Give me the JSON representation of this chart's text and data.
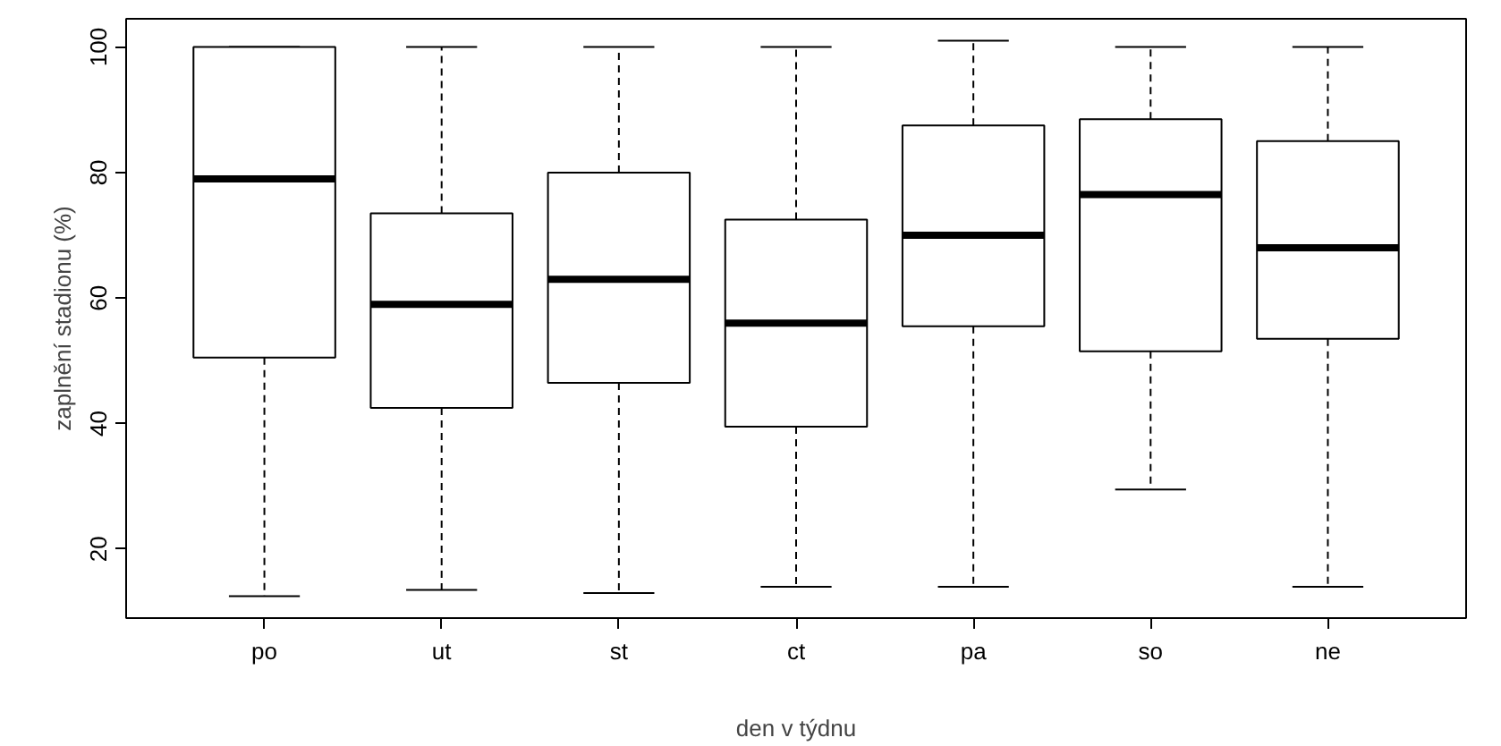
{
  "chart_data": {
    "type": "box",
    "xlabel": "den v týdnu",
    "ylabel": "zaplnění stadionu (%)",
    "categories": [
      "po",
      "ut",
      "st",
      "ct",
      "pa",
      "so",
      "ne"
    ],
    "boxes": [
      {
        "low": 12.5,
        "q1": 50.5,
        "median": 79,
        "q3": 100,
        "high": 100
      },
      {
        "low": 13.5,
        "q1": 42.5,
        "median": 59,
        "q3": 73.5,
        "high": 100
      },
      {
        "low": 13,
        "q1": 46.5,
        "median": 63,
        "q3": 80,
        "high": 100
      },
      {
        "low": 14,
        "q1": 39.5,
        "median": 56,
        "q3": 72.5,
        "high": 100
      },
      {
        "low": 14,
        "q1": 55.5,
        "median": 70,
        "q3": 87.5,
        "high": 101
      },
      {
        "low": 29.5,
        "q1": 51.5,
        "median": 76.5,
        "q3": 88.5,
        "high": 100
      },
      {
        "low": 14,
        "q1": 53.5,
        "median": 68,
        "q3": 85,
        "high": 100
      }
    ],
    "ylim": [
      9,
      104.5
    ],
    "yticks": [
      20,
      40,
      60,
      80,
      100
    ],
    "grid": false
  }
}
